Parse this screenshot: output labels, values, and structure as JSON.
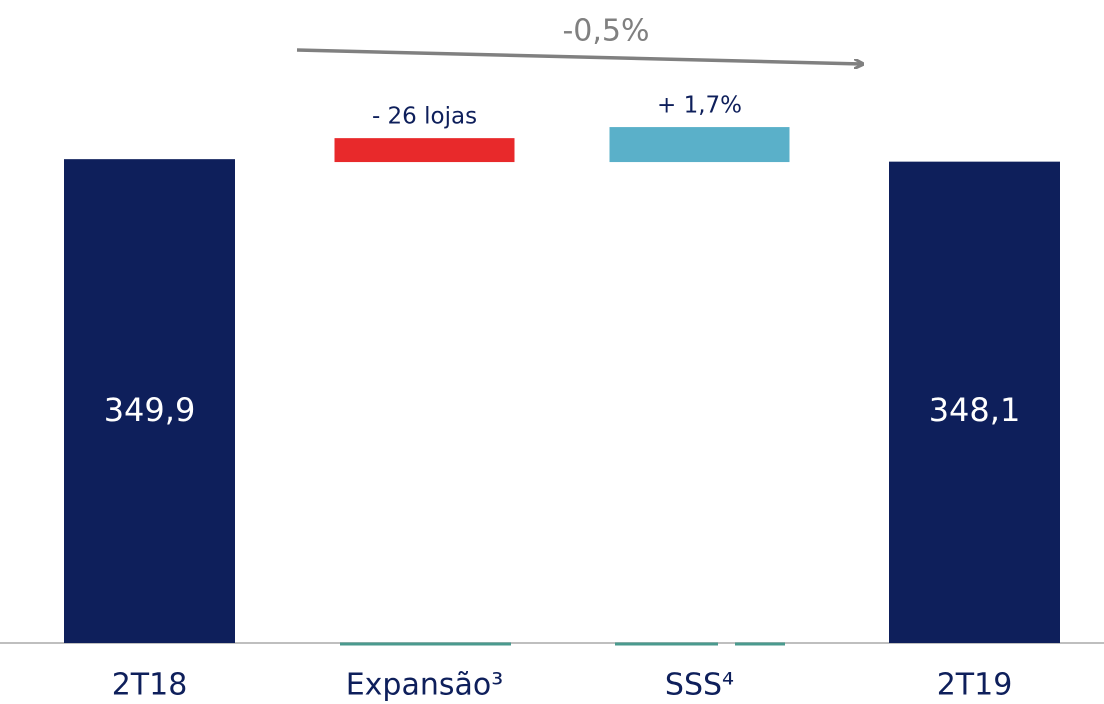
{
  "chart_data": {
    "type": "waterfall",
    "categories": [
      "2T18",
      "Expansão³",
      "SSS⁴",
      "2T19"
    ],
    "values": [
      349.9,
      null,
      null,
      348.1
    ],
    "value_labels": [
      "349,9",
      null,
      null,
      "348,1"
    ],
    "ranges": [
      null,
      [
        347.8,
        365.1
      ],
      [
        347.8,
        373.1
      ],
      null
    ],
    "range_labels": [
      null,
      "- 26 lojas",
      "+ 1,7%",
      null
    ],
    "colors": [
      "#0e1f5b",
      "#e8292b",
      "#5ab0c9",
      "#0e1f5b"
    ],
    "change_label": "-0,5%",
    "ylim": [
      0,
      465
    ]
  }
}
